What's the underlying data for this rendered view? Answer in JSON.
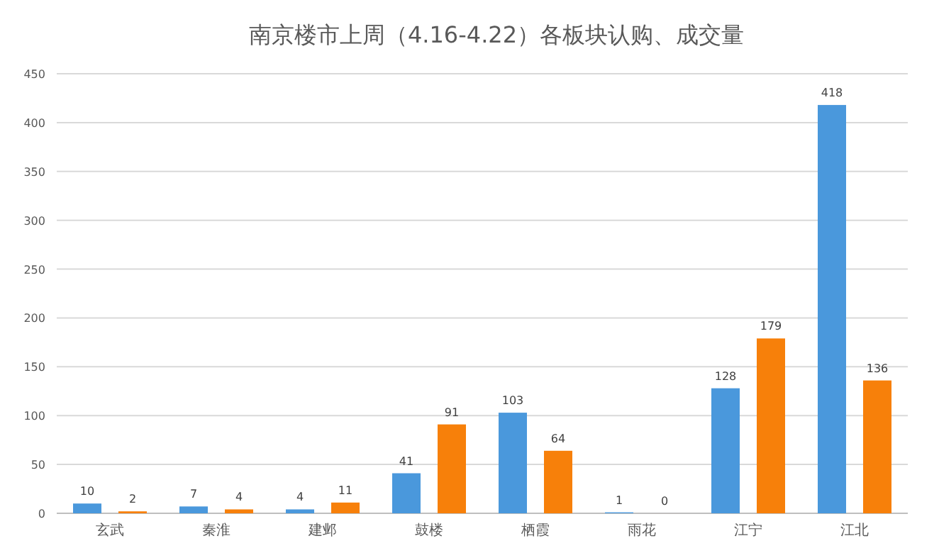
{
  "chart_data": {
    "type": "bar",
    "title": "南京楼市上周（4.16-4.22）各板块认购、成交量",
    "categories": [
      "玄武",
      "秦淮",
      "建邺",
      "鼓楼",
      "栖霞",
      "雨花",
      "江宁",
      "江北"
    ],
    "series": [
      {
        "color": "#4a98dc",
        "values": [
          10,
          7,
          4,
          41,
          103,
          1,
          128,
          418
        ]
      },
      {
        "color": "#f7800a",
        "values": [
          2,
          4,
          11,
          91,
          64,
          0,
          179,
          136
        ]
      }
    ],
    "ylim": [
      0,
      450
    ],
    "yticks": [
      0,
      50,
      100,
      150,
      200,
      250,
      300,
      350,
      400,
      450
    ],
    "grid": "y",
    "data_labels": true
  }
}
